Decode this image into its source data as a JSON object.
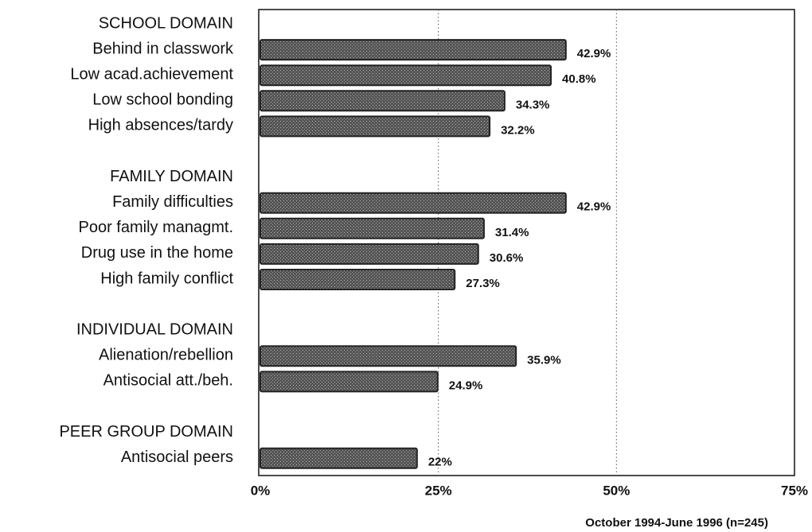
{
  "chart_data": {
    "type": "bar",
    "orientation": "horizontal",
    "categories": [
      "SCHOOL DOMAIN",
      "Behind in classwork",
      "Low acad.achievement",
      "Low school bonding",
      "High absences/tardy",
      null,
      "FAMILY DOMAIN",
      "Family difficulties",
      "Poor family managmt.",
      "Drug use in the home",
      "High family conflict",
      null,
      "INDIVIDUAL DOMAIN",
      "Alienation/rebellion",
      "Antisocial att./beh.",
      null,
      "PEER GROUP DOMAIN",
      "Antisocial peers"
    ],
    "values": [
      null,
      42.9,
      40.8,
      34.3,
      32.2,
      null,
      null,
      42.9,
      31.4,
      30.6,
      27.3,
      null,
      null,
      35.9,
      24.9,
      null,
      null,
      22
    ],
    "value_labels": [
      null,
      "42.9%",
      "40.8%",
      "34.3%",
      "32.2%",
      null,
      null,
      "42.9%",
      "31.4%",
      "30.6%",
      "27.3%",
      null,
      null,
      "35.9%",
      "24.9%",
      null,
      null,
      "22%"
    ],
    "color": "#3a3a3a",
    "xlim": [
      0,
      75
    ],
    "xticks": [
      {
        "value": 0,
        "label": "0%"
      },
      {
        "value": 25,
        "label": "25%"
      },
      {
        "value": 50,
        "label": "50%"
      },
      {
        "value": 75,
        "label": "75%"
      }
    ],
    "grid": true,
    "note": "October 1994-June 1996 (n=245)"
  }
}
